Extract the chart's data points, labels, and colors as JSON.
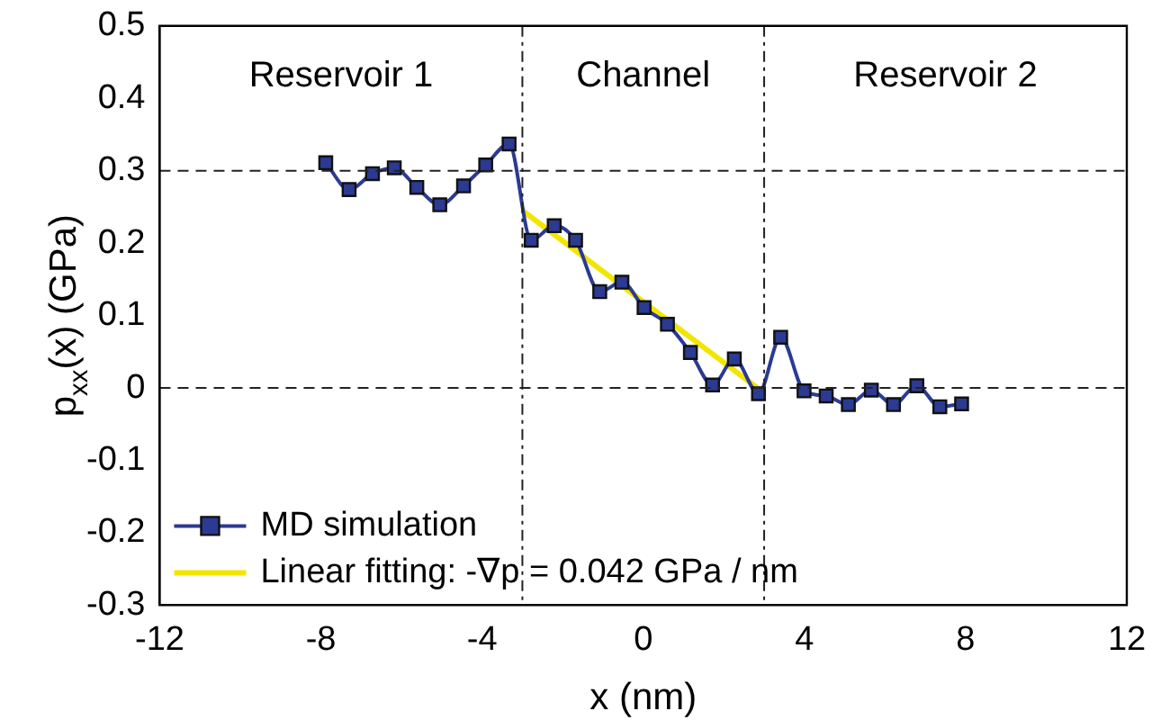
{
  "chart_data": {
    "type": "line",
    "xlabel": "x (nm)",
    "ylabel": "p$_{xx}$(x) (GPa)",
    "xlim": [
      -12,
      12
    ],
    "xticks": [
      -12,
      -8,
      -4,
      0,
      4,
      8,
      12
    ],
    "ylim": [
      -0.3,
      0.5
    ],
    "yticks": [
      -0.3,
      -0.2,
      -0.1,
      0,
      0.1,
      0.2,
      0.3,
      0.4,
      0.5
    ],
    "grid": false,
    "legend": "bottom left",
    "series": [
      {
        "name": "MD simulation",
        "color": "#2b3a93",
        "marker": "square",
        "x": [
          -7.88,
          -7.3,
          -6.72,
          -6.18,
          -5.62,
          -5.05,
          -4.46,
          -3.91,
          -3.33,
          -2.78,
          -2.21,
          -1.68,
          -1.08,
          -0.53,
          0.02,
          0.6,
          1.17,
          1.72,
          2.26,
          2.86,
          3.41,
          3.99,
          4.54,
          5.09,
          5.66,
          6.21,
          6.79,
          7.36,
          7.9
        ],
        "values": [
          0.311,
          0.274,
          0.296,
          0.304,
          0.277,
          0.253,
          0.279,
          0.308,
          0.337,
          0.204,
          0.224,
          0.204,
          0.133,
          0.146,
          0.111,
          0.088,
          0.049,
          0.004,
          0.04,
          -0.008,
          0.07,
          -0.004,
          -0.011,
          -0.023,
          -0.003,
          -0.023,
          0.003,
          -0.026,
          -0.022
        ]
      },
      {
        "name": "Linear fitting: -∇p = 0.042 GPa / nm",
        "color": "#f2e600",
        "marker": "none",
        "x": [
          -3,
          3
        ],
        "values": [
          0.245,
          -0.007
        ]
      }
    ],
    "ref_lines": [
      {
        "axis": "y",
        "value": 0.3,
        "line_style": "dashed"
      },
      {
        "axis": "y",
        "value": 0,
        "line_style": "dashed"
      },
      {
        "axis": "x",
        "value": -3,
        "line_style": "dashdot"
      },
      {
        "axis": "x",
        "value": 3,
        "line_style": "dashdot"
      }
    ],
    "annotations": [
      "Reservoir 1",
      "Channel",
      "Reservoir 2"
    ]
  }
}
